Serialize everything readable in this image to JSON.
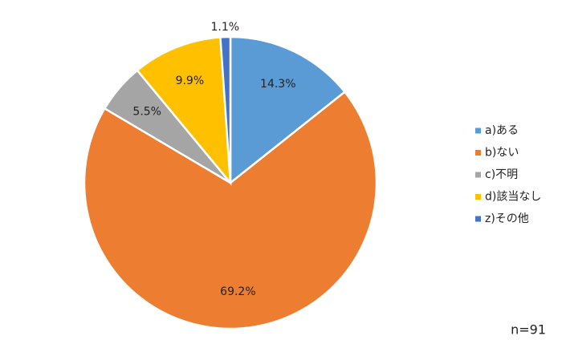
{
  "chart_data": {
    "type": "pie",
    "categories": [
      "a)ある",
      "b)ない",
      "c)不明",
      "d)該当なし",
      "z)その他"
    ],
    "values": [
      14.3,
      69.2,
      5.5,
      9.9,
      1.1
    ],
    "value_labels": [
      "14.3%",
      "69.2%",
      "5.5%",
      "9.9%",
      "1.1%"
    ],
    "colors": [
      "#5b9bd5",
      "#ed7d31",
      "#a5a5a5",
      "#ffc000",
      "#4472c4"
    ],
    "legend": "right",
    "annotation": "n=91"
  }
}
